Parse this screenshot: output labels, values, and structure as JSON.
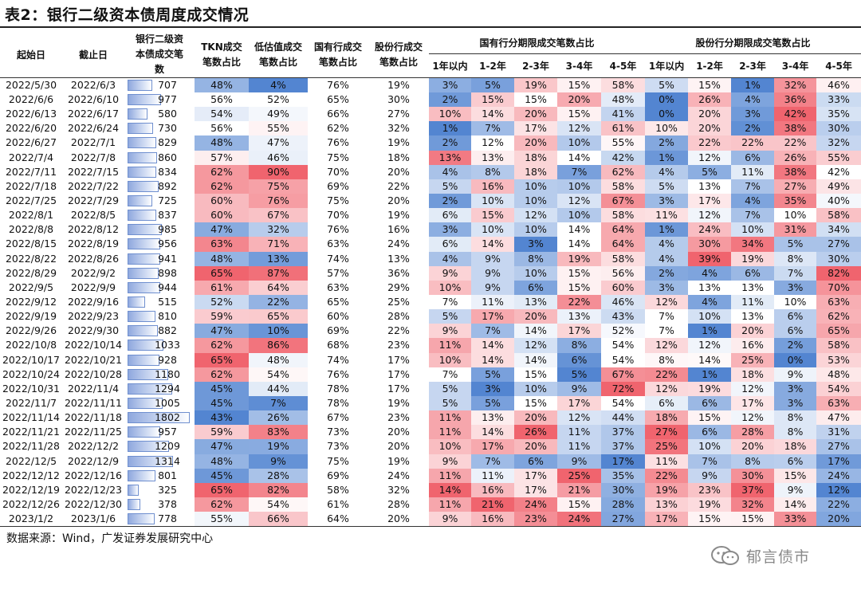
{
  "title": "表2：银行二级资本债周度成交情况",
  "colors": {
    "red": "#f0646e",
    "blue": "#4a7fcf",
    "neutral": "#ffffff"
  },
  "headers": {
    "start": "起始日",
    "end": "截止日",
    "volume": "银行二级资本债成交笔数",
    "tkn": "TKN成交笔数占比",
    "low": "低估值成交笔数占比",
    "state": "国有行成交笔数占比",
    "joint": "股份行成交笔数占比",
    "state_group": "国有行分期限成交笔数占比",
    "joint_group": "股份行分期限成交笔数占比",
    "tenors": [
      "1年以内",
      "1-2年",
      "2-3年",
      "3-4年",
      "4-5年",
      "1年以内",
      "1-2年",
      "2-3年",
      "3-4年",
      "4-5年"
    ]
  },
  "rows": [
    {
      "start": "2022/5/30",
      "end": "2022/6/3",
      "n": 707,
      "tkn": "48%",
      "low": "4%",
      "st": "76%",
      "jt": "19%",
      "s1": "3%",
      "s2": "5%",
      "s3": "19%",
      "s4": "15%",
      "s5": "58%",
      "j1": "5%",
      "j2": "15%",
      "j3": "1%",
      "j4": "32%",
      "j5": "46%"
    },
    {
      "start": "2022/6/6",
      "end": "2022/6/10",
      "n": 977,
      "tkn": "56%",
      "low": "52%",
      "st": "65%",
      "jt": "30%",
      "s1": "2%",
      "s2": "15%",
      "s3": "15%",
      "s4": "20%",
      "s5": "48%",
      "j1": "0%",
      "j2": "26%",
      "j3": "4%",
      "j4": "36%",
      "j5": "33%"
    },
    {
      "start": "2022/6/13",
      "end": "2022/6/17",
      "n": 580,
      "tkn": "54%",
      "low": "49%",
      "st": "66%",
      "jt": "27%",
      "s1": "10%",
      "s2": "14%",
      "s3": "20%",
      "s4": "15%",
      "s5": "41%",
      "j1": "0%",
      "j2": "20%",
      "j3": "3%",
      "j4": "42%",
      "j5": "35%"
    },
    {
      "start": "2022/6/20",
      "end": "2022/6/24",
      "n": 730,
      "tkn": "56%",
      "low": "55%",
      "st": "62%",
      "jt": "32%",
      "s1": "1%",
      "s2": "7%",
      "s3": "17%",
      "s4": "12%",
      "s5": "61%",
      "j1": "10%",
      "j2": "20%",
      "j3": "2%",
      "j4": "38%",
      "j5": "30%"
    },
    {
      "start": "2022/6/27",
      "end": "2022/7/1",
      "n": 829,
      "tkn": "48%",
      "low": "47%",
      "st": "76%",
      "jt": "19%",
      "s1": "2%",
      "s2": "12%",
      "s3": "20%",
      "s4": "10%",
      "s5": "55%",
      "j1": "2%",
      "j2": "22%",
      "j3": "22%",
      "j4": "22%",
      "j5": "32%"
    },
    {
      "start": "2022/7/4",
      "end": "2022/7/8",
      "n": 860,
      "tkn": "57%",
      "low": "46%",
      "st": "75%",
      "jt": "18%",
      "s1": "13%",
      "s2": "13%",
      "s3": "18%",
      "s4": "14%",
      "s5": "42%",
      "j1": "1%",
      "j2": "12%",
      "j3": "6%",
      "j4": "26%",
      "j5": "55%"
    },
    {
      "start": "2022/7/11",
      "end": "2022/7/15",
      "n": 834,
      "tkn": "62%",
      "low": "90%",
      "st": "70%",
      "jt": "20%",
      "s1": "4%",
      "s2": "8%",
      "s3": "18%",
      "s4": "7%",
      "s5": "62%",
      "j1": "4%",
      "j2": "5%",
      "j3": "11%",
      "j4": "38%",
      "j5": "42%"
    },
    {
      "start": "2022/7/18",
      "end": "2022/7/22",
      "n": 892,
      "tkn": "62%",
      "low": "75%",
      "st": "69%",
      "jt": "22%",
      "s1": "5%",
      "s2": "16%",
      "s3": "10%",
      "s4": "10%",
      "s5": "58%",
      "j1": "5%",
      "j2": "13%",
      "j3": "7%",
      "j4": "27%",
      "j5": "49%"
    },
    {
      "start": "2022/7/25",
      "end": "2022/7/29",
      "n": 725,
      "tkn": "60%",
      "low": "76%",
      "st": "75%",
      "jt": "20%",
      "s1": "2%",
      "s2": "10%",
      "s3": "10%",
      "s4": "12%",
      "s5": "67%",
      "j1": "3%",
      "j2": "17%",
      "j3": "4%",
      "j4": "35%",
      "j5": "40%"
    },
    {
      "start": "2022/8/1",
      "end": "2022/8/5",
      "n": 837,
      "tkn": "60%",
      "low": "67%",
      "st": "70%",
      "jt": "19%",
      "s1": "6%",
      "s2": "15%",
      "s3": "12%",
      "s4": "10%",
      "s5": "58%",
      "j1": "11%",
      "j2": "12%",
      "j3": "7%",
      "j4": "10%",
      "j5": "58%"
    },
    {
      "start": "2022/8/8",
      "end": "2022/8/12",
      "n": 985,
      "tkn": "47%",
      "low": "32%",
      "st": "76%",
      "jt": "16%",
      "s1": "3%",
      "s2": "10%",
      "s3": "10%",
      "s4": "14%",
      "s5": "64%",
      "j1": "1%",
      "j2": "24%",
      "j3": "10%",
      "j4": "31%",
      "j5": "34%"
    },
    {
      "start": "2022/8/15",
      "end": "2022/8/19",
      "n": 956,
      "tkn": "63%",
      "low": "71%",
      "st": "63%",
      "jt": "24%",
      "s1": "6%",
      "s2": "14%",
      "s3": "3%",
      "s4": "14%",
      "s5": "64%",
      "j1": "4%",
      "j2": "30%",
      "j3": "34%",
      "j4": "5%",
      "j5": "27%"
    },
    {
      "start": "2022/8/22",
      "end": "2022/8/26",
      "n": 941,
      "tkn": "48%",
      "low": "13%",
      "st": "74%",
      "jt": "13%",
      "s1": "4%",
      "s2": "9%",
      "s3": "8%",
      "s4": "19%",
      "s5": "58%",
      "j1": "4%",
      "j2": "39%",
      "j3": "19%",
      "j4": "8%",
      "j5": "30%"
    },
    {
      "start": "2022/8/29",
      "end": "2022/9/2",
      "n": 898,
      "tkn": "65%",
      "low": "87%",
      "st": "57%",
      "jt": "36%",
      "s1": "9%",
      "s2": "9%",
      "s3": "10%",
      "s4": "15%",
      "s5": "56%",
      "j1": "2%",
      "j2": "4%",
      "j3": "6%",
      "j4": "7%",
      "j5": "82%"
    },
    {
      "start": "2022/9/5",
      "end": "2022/9/9",
      "n": 944,
      "tkn": "61%",
      "low": "64%",
      "st": "63%",
      "jt": "29%",
      "s1": "10%",
      "s2": "9%",
      "s3": "6%",
      "s4": "15%",
      "s5": "60%",
      "j1": "3%",
      "j2": "13%",
      "j3": "13%",
      "j4": "3%",
      "j5": "70%"
    },
    {
      "start": "2022/9/12",
      "end": "2022/9/16",
      "n": 515,
      "tkn": "52%",
      "low": "22%",
      "st": "65%",
      "jt": "25%",
      "s1": "7%",
      "s2": "11%",
      "s3": "13%",
      "s4": "22%",
      "s5": "46%",
      "j1": "12%",
      "j2": "4%",
      "j3": "11%",
      "j4": "10%",
      "j5": "63%"
    },
    {
      "start": "2022/9/19",
      "end": "2022/9/23",
      "n": 810,
      "tkn": "59%",
      "low": "65%",
      "st": "60%",
      "jt": "28%",
      "s1": "5%",
      "s2": "17%",
      "s3": "20%",
      "s4": "13%",
      "s5": "43%",
      "j1": "7%",
      "j2": "10%",
      "j3": "13%",
      "j4": "6%",
      "j5": "62%"
    },
    {
      "start": "2022/9/26",
      "end": "2022/9/30",
      "n": 882,
      "tkn": "47%",
      "low": "10%",
      "st": "69%",
      "jt": "22%",
      "s1": "9%",
      "s2": "7%",
      "s3": "14%",
      "s4": "17%",
      "s5": "52%",
      "j1": "7%",
      "j2": "1%",
      "j3": "20%",
      "j4": "6%",
      "j5": "65%"
    },
    {
      "start": "2022/10/8",
      "end": "2022/10/14",
      "n": 1033,
      "tkn": "62%",
      "low": "86%",
      "st": "68%",
      "jt": "23%",
      "s1": "11%",
      "s2": "14%",
      "s3": "12%",
      "s4": "8%",
      "s5": "54%",
      "j1": "12%",
      "j2": "12%",
      "j3": "16%",
      "j4": "2%",
      "j5": "58%"
    },
    {
      "start": "2022/10/17",
      "end": "2022/10/21",
      "n": 928,
      "tkn": "65%",
      "low": "48%",
      "st": "74%",
      "jt": "17%",
      "s1": "10%",
      "s2": "14%",
      "s3": "14%",
      "s4": "6%",
      "s5": "54%",
      "j1": "8%",
      "j2": "14%",
      "j3": "25%",
      "j4": "0%",
      "j5": "53%"
    },
    {
      "start": "2022/10/24",
      "end": "2022/10/28",
      "n": 1180,
      "tkn": "62%",
      "low": "54%",
      "st": "76%",
      "jt": "17%",
      "s1": "7%",
      "s2": "5%",
      "s3": "15%",
      "s4": "5%",
      "s5": "67%",
      "j1": "22%",
      "j2": "1%",
      "j3": "18%",
      "j4": "9%",
      "j5": "48%"
    },
    {
      "start": "2022/10/31",
      "end": "2022/11/4",
      "n": 1294,
      "tkn": "45%",
      "low": "44%",
      "st": "78%",
      "jt": "17%",
      "s1": "5%",
      "s2": "3%",
      "s3": "10%",
      "s4": "9%",
      "s5": "72%",
      "j1": "12%",
      "j2": "19%",
      "j3": "12%",
      "j4": "3%",
      "j5": "54%"
    },
    {
      "start": "2022/11/7",
      "end": "2022/11/11",
      "n": 1005,
      "tkn": "45%",
      "low": "7%",
      "st": "78%",
      "jt": "19%",
      "s1": "5%",
      "s2": "5%",
      "s3": "15%",
      "s4": "17%",
      "s5": "54%",
      "j1": "6%",
      "j2": "6%",
      "j3": "17%",
      "j4": "3%",
      "j5": "63%"
    },
    {
      "start": "2022/11/14",
      "end": "2022/11/18",
      "n": 1802,
      "tkn": "43%",
      "low": "26%",
      "st": "67%",
      "jt": "23%",
      "s1": "11%",
      "s2": "13%",
      "s3": "20%",
      "s4": "12%",
      "s5": "44%",
      "j1": "18%",
      "j2": "15%",
      "j3": "12%",
      "j4": "8%",
      "j5": "47%"
    },
    {
      "start": "2022/11/21",
      "end": "2022/11/25",
      "n": 957,
      "tkn": "59%",
      "low": "83%",
      "st": "73%",
      "jt": "20%",
      "s1": "11%",
      "s2": "14%",
      "s3": "26%",
      "s4": "11%",
      "s5": "37%",
      "j1": "27%",
      "j2": "6%",
      "j3": "28%",
      "j4": "8%",
      "j5": "31%"
    },
    {
      "start": "2022/11/28",
      "end": "2022/12/2",
      "n": 1209,
      "tkn": "47%",
      "low": "19%",
      "st": "73%",
      "jt": "20%",
      "s1": "10%",
      "s2": "17%",
      "s3": "20%",
      "s4": "11%",
      "s5": "37%",
      "j1": "25%",
      "j2": "10%",
      "j3": "20%",
      "j4": "18%",
      "j5": "27%"
    },
    {
      "start": "2022/12/5",
      "end": "2022/12/9",
      "n": 1314,
      "tkn": "48%",
      "low": "9%",
      "st": "75%",
      "jt": "19%",
      "s1": "9%",
      "s2": "7%",
      "s3": "6%",
      "s4": "9%",
      "s5": "17%",
      "j1": "11%",
      "j2": "7%",
      "j3": "8%",
      "j4": "6%",
      "j5": "17%"
    },
    {
      "start": "2022/12/12",
      "end": "2022/12/16",
      "n": 801,
      "tkn": "45%",
      "low": "28%",
      "st": "69%",
      "jt": "24%",
      "s1": "11%",
      "s2": "11%",
      "s3": "17%",
      "s4": "25%",
      "s5": "35%",
      "j1": "22%",
      "j2": "9%",
      "j3": "30%",
      "j4": "15%",
      "j5": "24%"
    },
    {
      "start": "2022/12/19",
      "end": "2022/12/23",
      "n": 325,
      "tkn": "65%",
      "low": "82%",
      "st": "58%",
      "jt": "32%",
      "s1": "14%",
      "s2": "16%",
      "s3": "17%",
      "s4": "21%",
      "s5": "30%",
      "j1": "19%",
      "j2": "23%",
      "j3": "37%",
      "j4": "9%",
      "j5": "12%"
    },
    {
      "start": "2022/12/26",
      "end": "2022/12/30",
      "n": 378,
      "tkn": "62%",
      "low": "54%",
      "st": "61%",
      "jt": "28%",
      "s1": "11%",
      "s2": "21%",
      "s3": "24%",
      "s4": "15%",
      "s5": "28%",
      "j1": "13%",
      "j2": "19%",
      "j3": "32%",
      "j4": "14%",
      "j5": "22%"
    },
    {
      "start": "2023/1/2",
      "end": "2023/1/6",
      "n": 778,
      "tkn": "55%",
      "low": "66%",
      "st": "64%",
      "jt": "20%",
      "s1": "9%",
      "s2": "16%",
      "s3": "23%",
      "s4": "24%",
      "s5": "27%",
      "j1": "17%",
      "j2": "15%",
      "j3": "15%",
      "j4": "33%",
      "j5": "20%"
    }
  ],
  "footer": "数据来源：Wind，广发证券发展研究中心",
  "logo_text": "郁言债市"
}
